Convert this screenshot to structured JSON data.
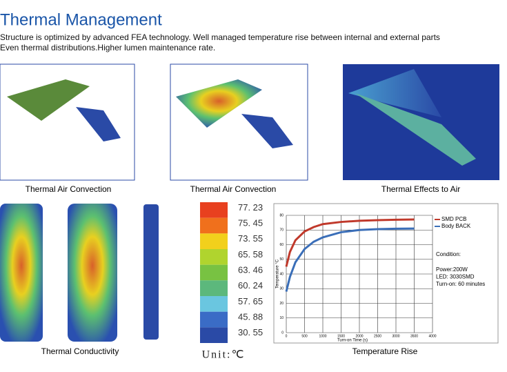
{
  "header": {
    "title": "Thermal Management",
    "lines": [
      "Structure is optimized by advanced FEA technology. Well managed temperature rise between internal and external parts",
      "Even thermal distributions.Higher lumen maintenance rate."
    ]
  },
  "captions": [
    "Thermal Air Convection",
    "Thermal Air Convection",
    "Thermal Effects to Air",
    "Thermal Conductivity",
    "Temperature Rise"
  ],
  "scale": {
    "items": [
      {
        "label": "77. 23",
        "color": "#e8401f"
      },
      {
        "label": "75. 45",
        "color": "#f0701c"
      },
      {
        "label": "73. 55",
        "color": "#f2d01c"
      },
      {
        "label": "65. 58",
        "color": "#b0d42e"
      },
      {
        "label": "63. 46",
        "color": "#78c242"
      },
      {
        "label": "60. 24",
        "color": "#5cb87c"
      },
      {
        "label": "57. 65",
        "color": "#6ac6e0"
      },
      {
        "label": "45. 88",
        "color": "#3a6cc6"
      },
      {
        "label": "30. 55",
        "color": "#2a4aa6"
      }
    ],
    "unit": "Unit:℃"
  },
  "chart_data": {
    "type": "line",
    "x": [
      0,
      100,
      250,
      500,
      750,
      1000,
      1500,
      2000,
      2500,
      3000,
      3500
    ],
    "series": [
      {
        "name": "SMD PCB",
        "color": "#c0392b",
        "values": [
          45,
          55,
          63,
          69,
          72,
          74,
          75.5,
          76.3,
          76.7,
          77,
          77.2
        ]
      },
      {
        "name": "Body BACK",
        "color": "#3a6eb8",
        "values": [
          28,
          38,
          48,
          57,
          62,
          65,
          68.5,
          70,
          70.6,
          70.9,
          71
        ]
      }
    ],
    "xlim": [
      0,
      4000
    ],
    "xticks": [
      0,
      500,
      1000,
      1500,
      2000,
      2500,
      3000,
      3500,
      4000
    ],
    "ylim": [
      0,
      80
    ],
    "yticks": [
      0,
      10,
      20,
      30,
      40,
      50,
      60,
      70,
      80
    ],
    "x_label": "Turn-on Time (s)",
    "y_label": "Temperature °C",
    "grid": true,
    "notes": [
      "Condition:",
      "Power:200W",
      "LED: 3030SMD",
      "Turn-on: 60 minutes"
    ]
  }
}
